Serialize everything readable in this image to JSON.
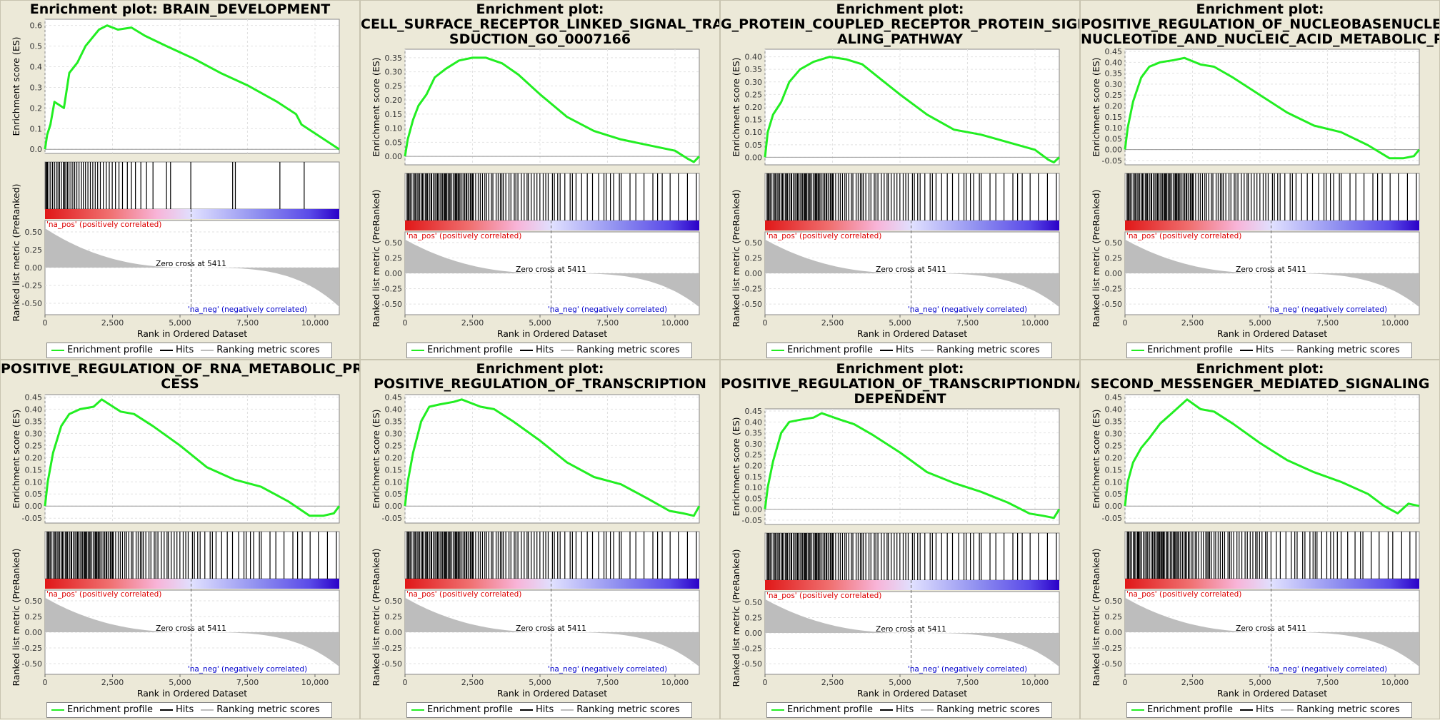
{
  "colors": {
    "es_line": "#22ee22",
    "hits": "#000000",
    "metric": "#bdbdbd",
    "pos_label": "#dd0000",
    "neg_label": "#0000cc"
  },
  "legend": {
    "enrichment": "Enrichment profile",
    "hits": "Hits",
    "ranking": "Ranking metric scores"
  },
  "axes": {
    "es_ylabel": "Enrichment score (ES)",
    "metric_ylabel": "Ranked list metric (PreRanked)",
    "xlabel": "Rank in Ordered Dataset",
    "pos_label": "'na_pos' (positively correlated)",
    "neg_label": "'na_neg' (negatively correlated)",
    "zero_cross": "Zero cross at 5411"
  },
  "chart_data": [
    {
      "type": "line",
      "title": [
        "Enrichment plot: BRAIN_DEVELOPMENT"
      ],
      "xlim": [
        0,
        10900
      ],
      "xticks": [
        "0",
        "2,500",
        "5,000",
        "7,500",
        "10,000"
      ],
      "ylim": [
        -0.02,
        0.63
      ],
      "yticks": [
        "0.0",
        "0.1",
        "0.2",
        "0.3",
        "0.4",
        "0.5",
        "0.6"
      ],
      "yvals": [
        0,
        0.1,
        0.2,
        0.3,
        0.4,
        0.5,
        0.6
      ],
      "es": [
        [
          0,
          0
        ],
        [
          80,
          0.07
        ],
        [
          200,
          0.12
        ],
        [
          350,
          0.23
        ],
        [
          700,
          0.2
        ],
        [
          900,
          0.37
        ],
        [
          1200,
          0.42
        ],
        [
          1500,
          0.5
        ],
        [
          2000,
          0.58
        ],
        [
          2300,
          0.6
        ],
        [
          2700,
          0.58
        ],
        [
          3200,
          0.59
        ],
        [
          3700,
          0.55
        ],
        [
          4500,
          0.5
        ],
        [
          5500,
          0.44
        ],
        [
          6500,
          0.37
        ],
        [
          7500,
          0.31
        ],
        [
          8600,
          0.23
        ],
        [
          9300,
          0.17
        ],
        [
          9500,
          0.12
        ],
        [
          10900,
          0
        ]
      ],
      "hits": [
        30,
        60,
        90,
        150,
        210,
        280,
        350,
        420,
        480,
        540,
        610,
        680,
        720,
        770,
        830,
        890,
        960,
        1030,
        1100,
        1180,
        1260,
        1350,
        1420,
        1500,
        1590,
        1680,
        1770,
        1860,
        1950,
        2050,
        2160,
        2270,
        2380,
        2490,
        2610,
        2740,
        2870,
        3050,
        3200,
        3350,
        3550,
        3760,
        4000,
        4500,
        4650,
        5400,
        6950,
        7050,
        8700,
        9600
      ]
    },
    {
      "type": "line",
      "title": [
        "Enrichment plot:",
        "CELL_SURFACE_RECEPTOR_LINKED_SIGNAL_TRAN",
        "SDUCTION_GO_0007166"
      ],
      "xlim": [
        0,
        10900
      ],
      "xticks": [
        "0",
        "2,500",
        "5,000",
        "7,500",
        "10,000"
      ],
      "ylim": [
        -0.03,
        0.38
      ],
      "yticks": [
        "0.00",
        "0.05",
        "0.10",
        "0.15",
        "0.20",
        "0.25",
        "0.30",
        "0.35"
      ],
      "yvals": [
        0,
        0.05,
        0.1,
        0.15,
        0.2,
        0.25,
        0.3,
        0.35
      ],
      "es": [
        [
          0,
          0
        ],
        [
          100,
          0.06
        ],
        [
          300,
          0.13
        ],
        [
          500,
          0.18
        ],
        [
          800,
          0.22
        ],
        [
          1100,
          0.28
        ],
        [
          1500,
          0.31
        ],
        [
          2000,
          0.34
        ],
        [
          2500,
          0.35
        ],
        [
          3000,
          0.35
        ],
        [
          3600,
          0.33
        ],
        [
          4200,
          0.29
        ],
        [
          5000,
          0.22
        ],
        [
          6000,
          0.14
        ],
        [
          7000,
          0.09
        ],
        [
          8000,
          0.06
        ],
        [
          9000,
          0.04
        ],
        [
          10000,
          0.02
        ],
        [
          10500,
          -0.01
        ],
        [
          10700,
          -0.02
        ],
        [
          10900,
          0
        ]
      ],
      "hits": "dense-a"
    },
    {
      "type": "line",
      "title": [
        "Enrichment plot:",
        "G_PROTEIN_COUPLED_RECEPTOR_PROTEIN_SIGN",
        "ALING_PATHWAY"
      ],
      "xlim": [
        0,
        10900
      ],
      "xticks": [
        "0",
        "2,500",
        "5,000",
        "7,500",
        "10,000"
      ],
      "ylim": [
        -0.03,
        0.43
      ],
      "yticks": [
        "0.00",
        "0.05",
        "0.10",
        "0.15",
        "0.20",
        "0.25",
        "0.30",
        "0.35",
        "0.40"
      ],
      "yvals": [
        0,
        0.05,
        0.1,
        0.15,
        0.2,
        0.25,
        0.3,
        0.35,
        0.4
      ],
      "es": [
        [
          0,
          0
        ],
        [
          100,
          0.1
        ],
        [
          300,
          0.17
        ],
        [
          600,
          0.22
        ],
        [
          900,
          0.3
        ],
        [
          1300,
          0.35
        ],
        [
          1800,
          0.38
        ],
        [
          2400,
          0.4
        ],
        [
          3000,
          0.39
        ],
        [
          3600,
          0.37
        ],
        [
          4300,
          0.31
        ],
        [
          5000,
          0.25
        ],
        [
          6000,
          0.17
        ],
        [
          7000,
          0.11
        ],
        [
          8000,
          0.09
        ],
        [
          9000,
          0.06
        ],
        [
          10000,
          0.03
        ],
        [
          10500,
          -0.01
        ],
        [
          10700,
          -0.02
        ],
        [
          10900,
          0
        ]
      ],
      "hits": "dense-b"
    },
    {
      "type": "line",
      "title": [
        "Enrichment plot:",
        "POSITIVE_REGULATION_OF_NUCLEOBASENUCLEO",
        "NUCLEOTIDE_AND_NUCLEIC_ACID_METABOLIC_PRO"
      ],
      "xlim": [
        0,
        10900
      ],
      "xticks": [
        "0",
        "2,500",
        "5,000",
        "7,500",
        "10,000"
      ],
      "ylim": [
        -0.07,
        0.46
      ],
      "yticks": [
        "-0.05",
        "0.00",
        "0.05",
        "0.10",
        "0.15",
        "0.20",
        "0.25",
        "0.30",
        "0.35",
        "0.40",
        "0.45"
      ],
      "yvals": [
        -0.05,
        0,
        0.05,
        0.1,
        0.15,
        0.2,
        0.25,
        0.3,
        0.35,
        0.4,
        0.45
      ],
      "es": [
        [
          0,
          0
        ],
        [
          100,
          0.1
        ],
        [
          300,
          0.22
        ],
        [
          600,
          0.33
        ],
        [
          900,
          0.38
        ],
        [
          1300,
          0.4
        ],
        [
          1800,
          0.41
        ],
        [
          2200,
          0.42
        ],
        [
          2800,
          0.39
        ],
        [
          3300,
          0.38
        ],
        [
          4000,
          0.33
        ],
        [
          5000,
          0.25
        ],
        [
          6000,
          0.17
        ],
        [
          7000,
          0.11
        ],
        [
          8000,
          0.08
        ],
        [
          9000,
          0.02
        ],
        [
          9800,
          -0.04
        ],
        [
          10300,
          -0.04
        ],
        [
          10700,
          -0.03
        ],
        [
          10900,
          0
        ]
      ],
      "hits": "dense-c"
    },
    {
      "type": "line",
      "title": [
        "POSITIVE_REGULATION_OF_RNA_METABOLIC_PRO",
        "CESS"
      ],
      "xlim": [
        0,
        10900
      ],
      "xticks": [
        "0",
        "2,500",
        "5,000",
        "7,500",
        "10,000"
      ],
      "ylim": [
        -0.07,
        0.46
      ],
      "yticks": [
        "-0.05",
        "0.00",
        "0.05",
        "0.10",
        "0.15",
        "0.20",
        "0.25",
        "0.30",
        "0.35",
        "0.40",
        "0.45"
      ],
      "yvals": [
        -0.05,
        0,
        0.05,
        0.1,
        0.15,
        0.2,
        0.25,
        0.3,
        0.35,
        0.4,
        0.45
      ],
      "es": [
        [
          0,
          0
        ],
        [
          100,
          0.1
        ],
        [
          300,
          0.22
        ],
        [
          600,
          0.33
        ],
        [
          900,
          0.38
        ],
        [
          1300,
          0.4
        ],
        [
          1800,
          0.41
        ],
        [
          2100,
          0.44
        ],
        [
          2800,
          0.39
        ],
        [
          3300,
          0.38
        ],
        [
          4000,
          0.33
        ],
        [
          5000,
          0.25
        ],
        [
          6000,
          0.16
        ],
        [
          7000,
          0.11
        ],
        [
          8000,
          0.08
        ],
        [
          9000,
          0.02
        ],
        [
          9800,
          -0.04
        ],
        [
          10300,
          -0.04
        ],
        [
          10700,
          -0.03
        ],
        [
          10900,
          0
        ]
      ],
      "hits": "dense-c"
    },
    {
      "type": "line",
      "title": [
        "Enrichment plot:",
        "POSITIVE_REGULATION_OF_TRANSCRIPTION"
      ],
      "xlim": [
        0,
        10900
      ],
      "xticks": [
        "0",
        "2,500",
        "5,000",
        "7,500",
        "10,000"
      ],
      "ylim": [
        -0.07,
        0.46
      ],
      "yticks": [
        "-0.05",
        "0.00",
        "0.05",
        "0.10",
        "0.15",
        "0.20",
        "0.25",
        "0.30",
        "0.35",
        "0.40",
        "0.45"
      ],
      "yvals": [
        -0.05,
        0,
        0.05,
        0.1,
        0.15,
        0.2,
        0.25,
        0.3,
        0.35,
        0.4,
        0.45
      ],
      "es": [
        [
          0,
          0
        ],
        [
          100,
          0.1
        ],
        [
          300,
          0.22
        ],
        [
          600,
          0.35
        ],
        [
          900,
          0.41
        ],
        [
          1300,
          0.42
        ],
        [
          1800,
          0.43
        ],
        [
          2100,
          0.44
        ],
        [
          2800,
          0.41
        ],
        [
          3300,
          0.4
        ],
        [
          4000,
          0.35
        ],
        [
          5000,
          0.27
        ],
        [
          6000,
          0.18
        ],
        [
          7000,
          0.12
        ],
        [
          8000,
          0.09
        ],
        [
          9000,
          0.03
        ],
        [
          9800,
          -0.02
        ],
        [
          10300,
          -0.03
        ],
        [
          10700,
          -0.04
        ],
        [
          10900,
          0
        ]
      ],
      "hits": "dense-c"
    },
    {
      "type": "line",
      "title": [
        "Enrichment plot:",
        "POSITIVE_REGULATION_OF_TRANSCRIPTIONDNA_",
        "DEPENDENT"
      ],
      "xlim": [
        0,
        10900
      ],
      "xticks": [
        "0",
        "2,500",
        "5,000",
        "7,500",
        "10,000"
      ],
      "ylim": [
        -0.07,
        0.46
      ],
      "yticks": [
        "-0.05",
        "0.00",
        "0.05",
        "0.10",
        "0.15",
        "0.20",
        "0.25",
        "0.30",
        "0.35",
        "0.40",
        "0.45"
      ],
      "yvals": [
        -0.05,
        0,
        0.05,
        0.1,
        0.15,
        0.2,
        0.25,
        0.3,
        0.35,
        0.4,
        0.45
      ],
      "es": [
        [
          0,
          0
        ],
        [
          100,
          0.1
        ],
        [
          300,
          0.22
        ],
        [
          600,
          0.35
        ],
        [
          900,
          0.4
        ],
        [
          1300,
          0.41
        ],
        [
          1800,
          0.42
        ],
        [
          2100,
          0.44
        ],
        [
          2800,
          0.41
        ],
        [
          3300,
          0.39
        ],
        [
          4000,
          0.34
        ],
        [
          5000,
          0.26
        ],
        [
          6000,
          0.17
        ],
        [
          7000,
          0.12
        ],
        [
          8000,
          0.08
        ],
        [
          9000,
          0.03
        ],
        [
          9800,
          -0.02
        ],
        [
          10300,
          -0.03
        ],
        [
          10700,
          -0.04
        ],
        [
          10900,
          0
        ]
      ],
      "hits": "dense-c"
    },
    {
      "type": "line",
      "title": [
        "Enrichment plot:",
        "SECOND_MESSENGER_MEDIATED_SIGNALING"
      ],
      "xlim": [
        0,
        10900
      ],
      "xticks": [
        "0",
        "2,500",
        "5,000",
        "7,500",
        "10,000"
      ],
      "ylim": [
        -0.07,
        0.46
      ],
      "yticks": [
        "-0.05",
        "0.00",
        "0.05",
        "0.10",
        "0.15",
        "0.20",
        "0.25",
        "0.30",
        "0.35",
        "0.40",
        "0.45"
      ],
      "yvals": [
        -0.05,
        0,
        0.05,
        0.1,
        0.15,
        0.2,
        0.25,
        0.3,
        0.35,
        0.4,
        0.45
      ],
      "es": [
        [
          0,
          0
        ],
        [
          100,
          0.1
        ],
        [
          300,
          0.18
        ],
        [
          600,
          0.24
        ],
        [
          900,
          0.28
        ],
        [
          1300,
          0.34
        ],
        [
          1700,
          0.38
        ],
        [
          2100,
          0.42
        ],
        [
          2300,
          0.44
        ],
        [
          2800,
          0.4
        ],
        [
          3300,
          0.39
        ],
        [
          4000,
          0.34
        ],
        [
          5000,
          0.26
        ],
        [
          6000,
          0.19
        ],
        [
          7000,
          0.14
        ],
        [
          8000,
          0.1
        ],
        [
          9000,
          0.05
        ],
        [
          9600,
          0.0
        ],
        [
          10100,
          -0.03
        ],
        [
          10500,
          0.01
        ],
        [
          10900,
          0
        ]
      ],
      "hits": "sparse"
    }
  ]
}
